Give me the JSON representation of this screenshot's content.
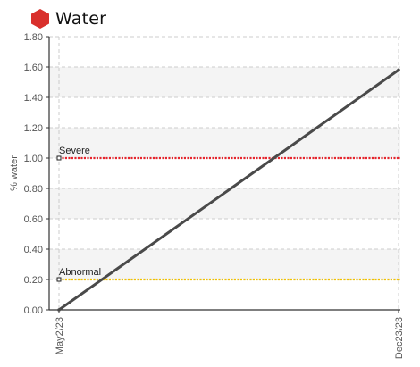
{
  "header": {
    "title": "Water",
    "icon": "hexagon-icon",
    "icon_color": "#d9302c"
  },
  "chart_data": {
    "type": "line",
    "title": "Water",
    "xlabel": "",
    "ylabel": "% water",
    "ylim": [
      0,
      1.8
    ],
    "y_ticks": [
      "0.00",
      "0.20",
      "0.40",
      "0.60",
      "0.80",
      "1.00",
      "1.20",
      "1.40",
      "1.60",
      "1.80"
    ],
    "x_ticks": [
      "May2/23",
      "Dec23/23"
    ],
    "grid": true,
    "series": [
      {
        "x": [
          "May2/23",
          "Dec23/23"
        ],
        "y": [
          0.0,
          1.58
        ],
        "color": "#4a4a4a"
      }
    ],
    "thresholds": [
      {
        "label": "Severe",
        "value": 1.0,
        "color": "#e8242c"
      },
      {
        "label": "Abnormal",
        "value": 0.2,
        "color": "#f2c200"
      }
    ],
    "band_color": "#f4f4f4",
    "grid_color": "#cccccc"
  }
}
